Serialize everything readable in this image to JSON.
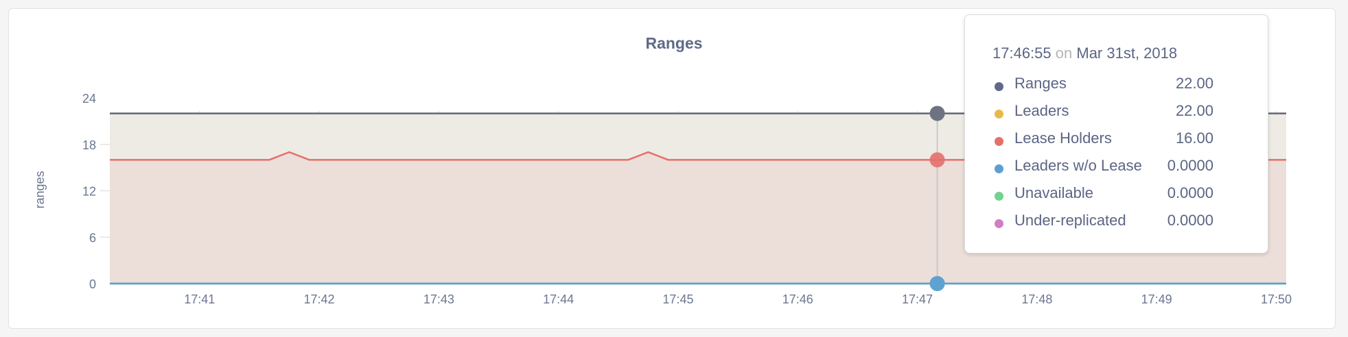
{
  "chart_data": {
    "type": "area",
    "title": "Ranges",
    "ylabel": "ranges",
    "xlabel": "",
    "ylim": [
      0,
      24
    ],
    "y_ticks": [
      "0",
      "6",
      "12",
      "18",
      "24"
    ],
    "x_range": [
      "17:40:15",
      "17:50:05"
    ],
    "x_ticks": [
      "17:41",
      "17:42",
      "17:43",
      "17:44",
      "17:45",
      "17:46",
      "17:47",
      "17:48",
      "17:49",
      "17:50"
    ],
    "grid": true,
    "series": [
      {
        "name": "Ranges",
        "color": "#5f6a87",
        "points": [
          [
            "17:40:15",
            22
          ],
          [
            "17:50:05",
            22
          ]
        ]
      },
      {
        "name": "Leaders",
        "color": "#e8b949",
        "fill": "#eeebe4",
        "points": [
          [
            "17:40:15",
            22
          ],
          [
            "17:50:05",
            22
          ]
        ]
      },
      {
        "name": "Lease Holders",
        "color": "#e4706a",
        "fill": "#ecdfd9",
        "points": [
          [
            "17:40:15",
            16
          ],
          [
            "17:41:35",
            16
          ],
          [
            "17:41:45",
            17
          ],
          [
            "17:41:55",
            16
          ],
          [
            "17:44:35",
            16
          ],
          [
            "17:44:45",
            17
          ],
          [
            "17:44:55",
            16
          ],
          [
            "17:50:05",
            16
          ]
        ]
      },
      {
        "name": "Leaders w/o Lease",
        "color": "#5b9fd6",
        "points": [
          [
            "17:40:15",
            0
          ],
          [
            "17:50:05",
            0
          ]
        ]
      },
      {
        "name": "Unavailable",
        "color": "#72d38f",
        "points": [
          [
            "17:40:15",
            0
          ],
          [
            "17:50:05",
            0
          ]
        ]
      },
      {
        "name": "Under-replicated",
        "color": "#d07fc0",
        "points": [
          [
            "17:40:15",
            0
          ],
          [
            "17:50:05",
            0
          ]
        ]
      }
    ]
  },
  "tooltip": {
    "time": "17:46:55",
    "on": "on",
    "date": "Mar 31st, 2018",
    "rows": [
      {
        "label": "Ranges",
        "value": "22.00",
        "color": "#5f6a87"
      },
      {
        "label": "Leaders",
        "value": "22.00",
        "color": "#e8b949"
      },
      {
        "label": "Lease Holders",
        "value": "16.00",
        "color": "#e4706a"
      },
      {
        "label": "Leaders w/o Lease",
        "value": "0.0000",
        "color": "#5b9fd6"
      },
      {
        "label": "Unavailable",
        "value": "0.0000",
        "color": "#72d38f"
      },
      {
        "label": "Under-replicated",
        "value": "0.0000",
        "color": "#d07fc0"
      }
    ]
  }
}
